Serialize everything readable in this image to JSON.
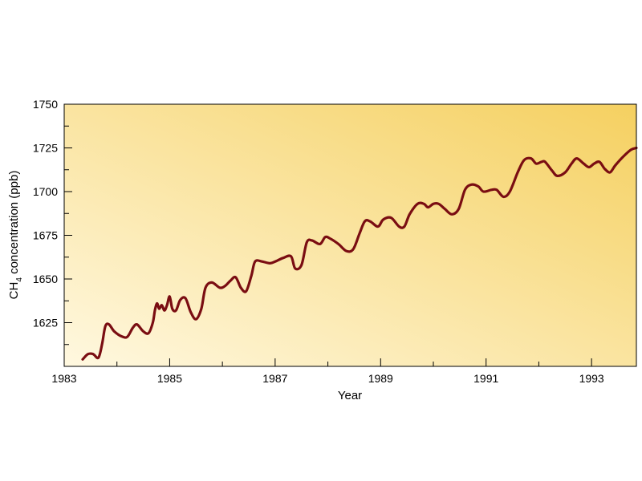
{
  "chart_data": {
    "type": "line",
    "xlabel": "Year",
    "ylabel_parts": {
      "base": "CH",
      "sub": "4",
      "rest": " concentration (ppb)"
    },
    "xlim": [
      1983,
      1993.85
    ],
    "ylim": [
      1600,
      1750
    ],
    "x_ticks": [
      1983,
      1985,
      1987,
      1989,
      1991,
      1993
    ],
    "x_tick_labels": [
      "1983",
      "1985",
      "1987",
      "1989",
      "1991",
      "1993"
    ],
    "y_ticks": [
      1625,
      1650,
      1675,
      1700,
      1725,
      1750
    ],
    "y_tick_labels": [
      "1625",
      "1650",
      "1675",
      "1700",
      "1725",
      "1750"
    ],
    "grid": false,
    "line_color": "#7a0d12",
    "background_gradient": [
      "#fff8e0",
      "#f5d060"
    ],
    "series": [
      {
        "name": "",
        "points": [
          [
            1983.35,
            1604
          ],
          [
            1983.45,
            1607
          ],
          [
            1983.55,
            1607
          ],
          [
            1983.65,
            1605
          ],
          [
            1983.72,
            1613
          ],
          [
            1983.78,
            1623
          ],
          [
            1983.85,
            1624
          ],
          [
            1983.95,
            1620
          ],
          [
            1984.1,
            1617
          ],
          [
            1984.2,
            1617
          ],
          [
            1984.3,
            1622
          ],
          [
            1984.38,
            1624
          ],
          [
            1984.5,
            1620
          ],
          [
            1984.6,
            1619
          ],
          [
            1984.68,
            1625
          ],
          [
            1984.72,
            1632
          ],
          [
            1984.76,
            1636
          ],
          [
            1984.8,
            1633
          ],
          [
            1984.85,
            1635
          ],
          [
            1984.9,
            1632
          ],
          [
            1984.95,
            1635
          ],
          [
            1985.0,
            1640
          ],
          [
            1985.05,
            1633
          ],
          [
            1985.12,
            1632
          ],
          [
            1985.2,
            1638
          ],
          [
            1985.3,
            1639
          ],
          [
            1985.4,
            1631
          ],
          [
            1985.5,
            1627
          ],
          [
            1985.6,
            1633
          ],
          [
            1985.68,
            1645
          ],
          [
            1985.8,
            1648
          ],
          [
            1985.95,
            1645
          ],
          [
            1986.05,
            1646
          ],
          [
            1986.15,
            1649
          ],
          [
            1986.25,
            1651
          ],
          [
            1986.35,
            1645
          ],
          [
            1986.45,
            1643
          ],
          [
            1986.55,
            1652
          ],
          [
            1986.62,
            1660
          ],
          [
            1986.75,
            1660
          ],
          [
            1986.9,
            1659
          ],
          [
            1987.0,
            1660
          ],
          [
            1987.15,
            1662
          ],
          [
            1987.3,
            1663
          ],
          [
            1987.38,
            1656
          ],
          [
            1987.5,
            1658
          ],
          [
            1987.6,
            1671
          ],
          [
            1987.7,
            1672
          ],
          [
            1987.85,
            1670
          ],
          [
            1987.95,
            1674
          ],
          [
            1988.05,
            1673
          ],
          [
            1988.2,
            1670
          ],
          [
            1988.35,
            1666
          ],
          [
            1988.48,
            1667
          ],
          [
            1988.6,
            1676
          ],
          [
            1988.7,
            1683
          ],
          [
            1988.8,
            1683
          ],
          [
            1988.95,
            1680
          ],
          [
            1989.05,
            1684
          ],
          [
            1989.2,
            1685
          ],
          [
            1989.35,
            1680
          ],
          [
            1989.45,
            1680
          ],
          [
            1989.55,
            1687
          ],
          [
            1989.7,
            1693
          ],
          [
            1989.82,
            1693
          ],
          [
            1989.9,
            1691
          ],
          [
            1990.0,
            1693
          ],
          [
            1990.1,
            1693
          ],
          [
            1990.22,
            1690
          ],
          [
            1990.35,
            1687
          ],
          [
            1990.48,
            1690
          ],
          [
            1990.6,
            1701
          ],
          [
            1990.72,
            1704
          ],
          [
            1990.85,
            1703
          ],
          [
            1990.95,
            1700
          ],
          [
            1991.1,
            1701
          ],
          [
            1991.2,
            1701
          ],
          [
            1991.33,
            1697
          ],
          [
            1991.45,
            1700
          ],
          [
            1991.6,
            1711
          ],
          [
            1991.72,
            1718
          ],
          [
            1991.85,
            1719
          ],
          [
            1991.95,
            1716
          ],
          [
            1992.05,
            1717
          ],
          [
            1992.12,
            1717
          ],
          [
            1992.25,
            1712
          ],
          [
            1992.35,
            1709
          ],
          [
            1992.5,
            1711
          ],
          [
            1992.62,
            1716
          ],
          [
            1992.72,
            1719
          ],
          [
            1992.85,
            1716
          ],
          [
            1992.95,
            1714
          ],
          [
            1993.05,
            1716
          ],
          [
            1993.15,
            1717
          ],
          [
            1993.25,
            1713
          ],
          [
            1993.35,
            1711
          ],
          [
            1993.45,
            1715
          ],
          [
            1993.6,
            1720
          ],
          [
            1993.75,
            1724
          ],
          [
            1993.85,
            1725
          ]
        ]
      }
    ]
  }
}
